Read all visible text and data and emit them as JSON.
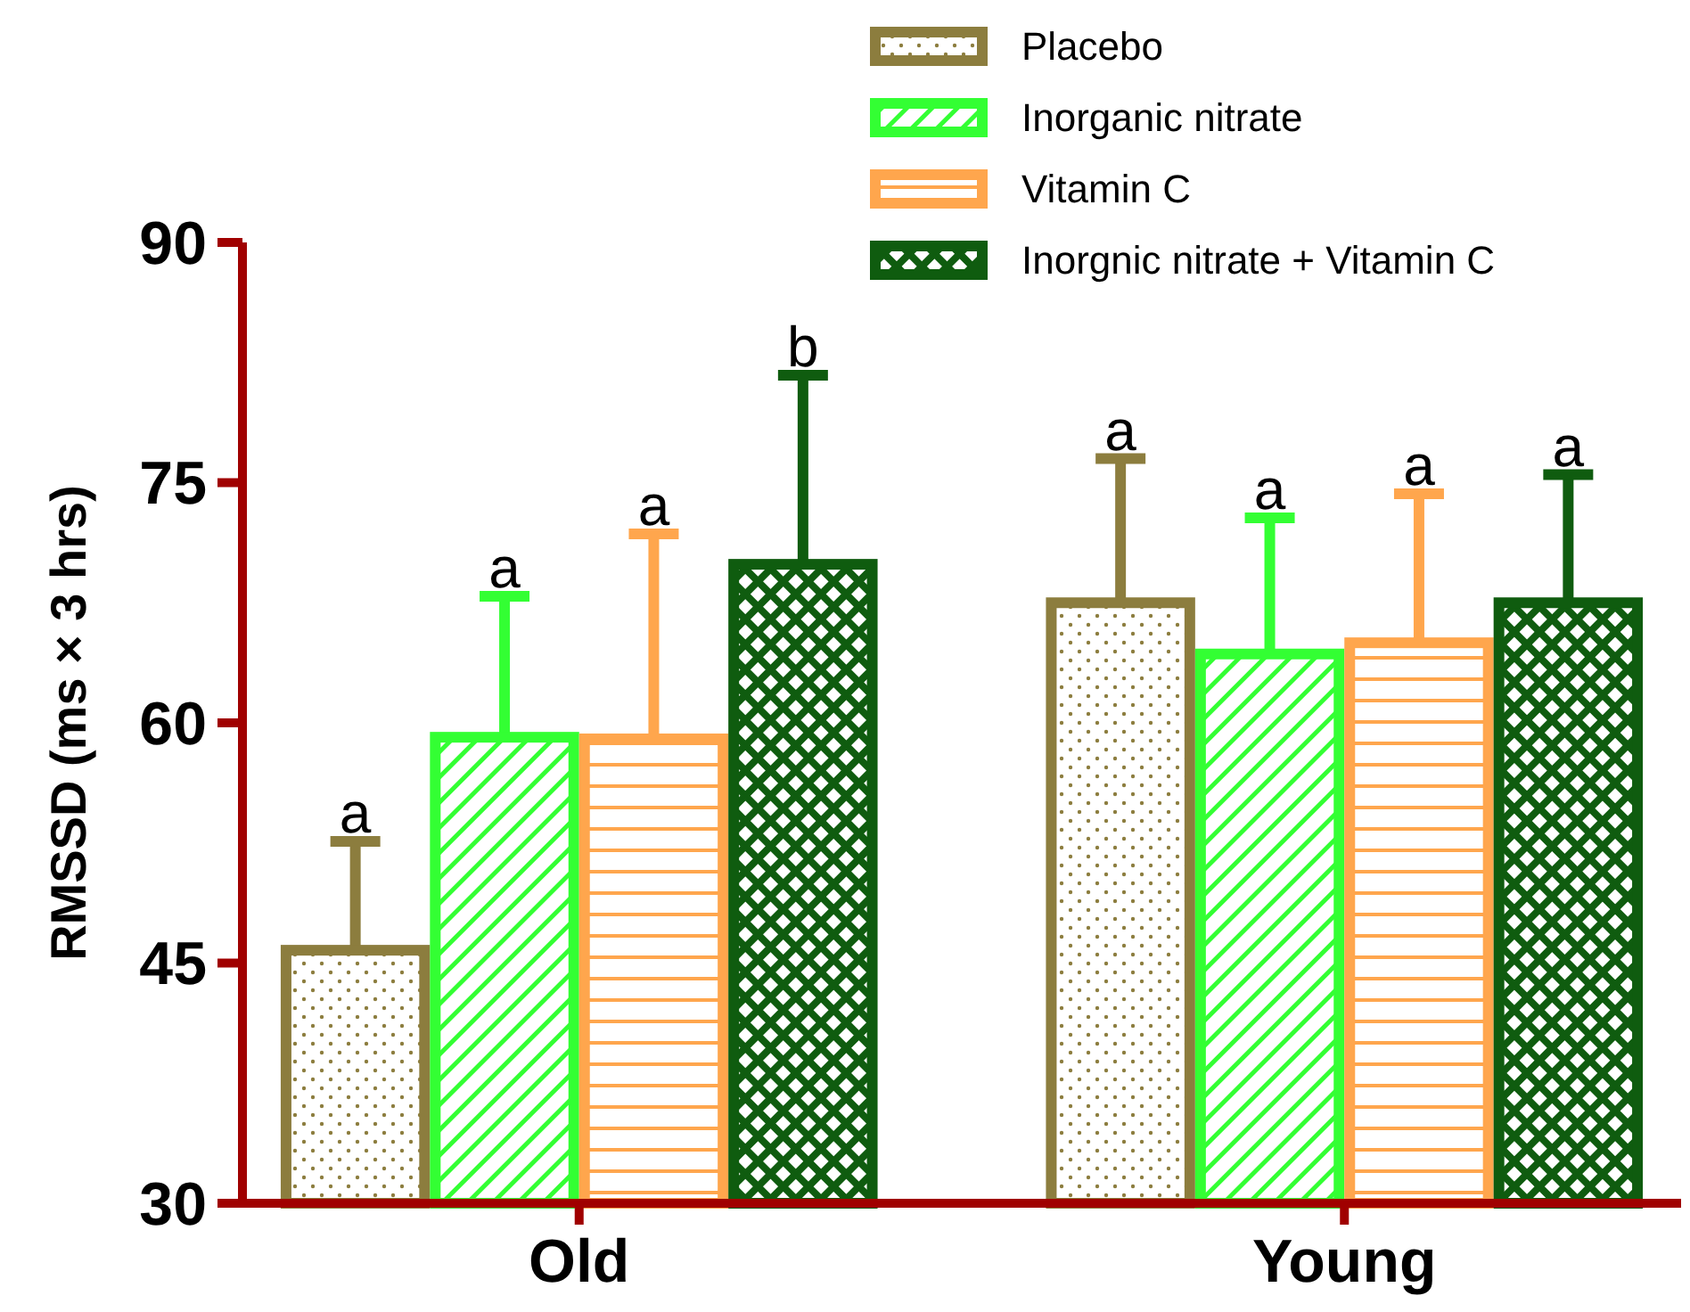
{
  "chart_data": {
    "type": "bar",
    "ylabel": "RMSSD (ms × 3 hrs)",
    "categories": [
      "Old",
      "Young"
    ],
    "ylim": [
      30,
      90
    ],
    "yticks": [
      30,
      45,
      60,
      75,
      90
    ],
    "grid": false,
    "legend": "top right",
    "annotations": [
      "a",
      "a",
      "a",
      "b",
      "a",
      "a",
      "a",
      "a"
    ],
    "series": [
      {
        "name": "Placebo",
        "color": "#8c7d3e",
        "values": [
          45.8,
          67.5
        ],
        "errors": [
          6.8,
          9
        ]
      },
      {
        "name": "Inorganic nitrate",
        "color": "#33ff33",
        "values": [
          59.1,
          64.3
        ],
        "errors": [
          8.8,
          8.5
        ]
      },
      {
        "name": "Vitamin C",
        "color": "#ffa64d",
        "values": [
          59,
          65
        ],
        "errors": [
          12.8,
          9.3
        ]
      },
      {
        "name": "Inorgnic nitrate + Vitamin C",
        "color": "#0f5c0f",
        "values": [
          69.9,
          67.5
        ],
        "errors": [
          11.8,
          8
        ]
      }
    ]
  }
}
